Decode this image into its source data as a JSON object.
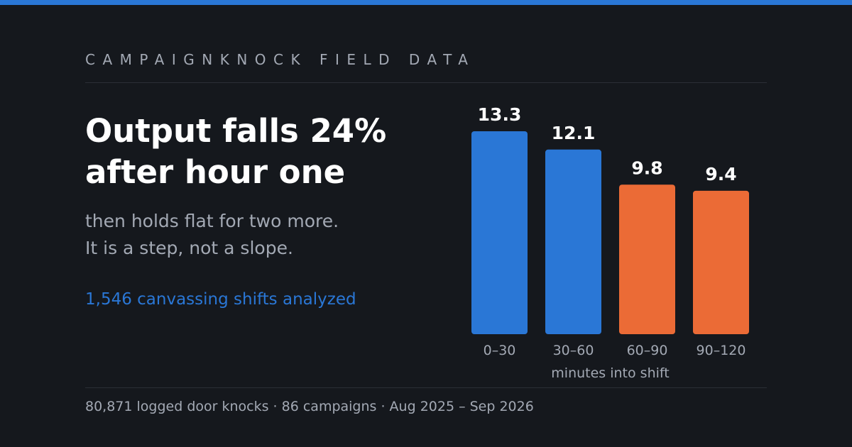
{
  "header": {
    "kicker": "CAMPAIGNKNOCK FIELD DATA"
  },
  "headline": {
    "title": "Output falls 24% after hour one",
    "subtitle_line1": "then holds flat for two more.",
    "subtitle_line2": "It is a step, not a slope.",
    "sample_note": "1,546 canvassing shifts analyzed"
  },
  "footer": {
    "text": "80,871 logged door knocks · 86 campaigns · Aug 2025 – Sep 2026"
  },
  "colors": {
    "accent": "#2a77d6",
    "highlight": "#eb6b36",
    "background": "#15181d",
    "muted_text": "#a3a9b4"
  },
  "chart_data": {
    "type": "bar",
    "categories": [
      "0–30",
      "30–60",
      "60–90",
      "90–120"
    ],
    "values": [
      13.3,
      12.1,
      9.8,
      9.4
    ],
    "value_labels": [
      "13.3",
      "12.1",
      "9.8",
      "9.4"
    ],
    "bar_colors": [
      "#2a77d6",
      "#2a77d6",
      "#eb6b36",
      "#eb6b36"
    ],
    "title": "",
    "xlabel": "minutes into shift",
    "ylabel": "",
    "ylim": [
      0,
      13.3
    ],
    "grid": false,
    "legend": "none"
  }
}
